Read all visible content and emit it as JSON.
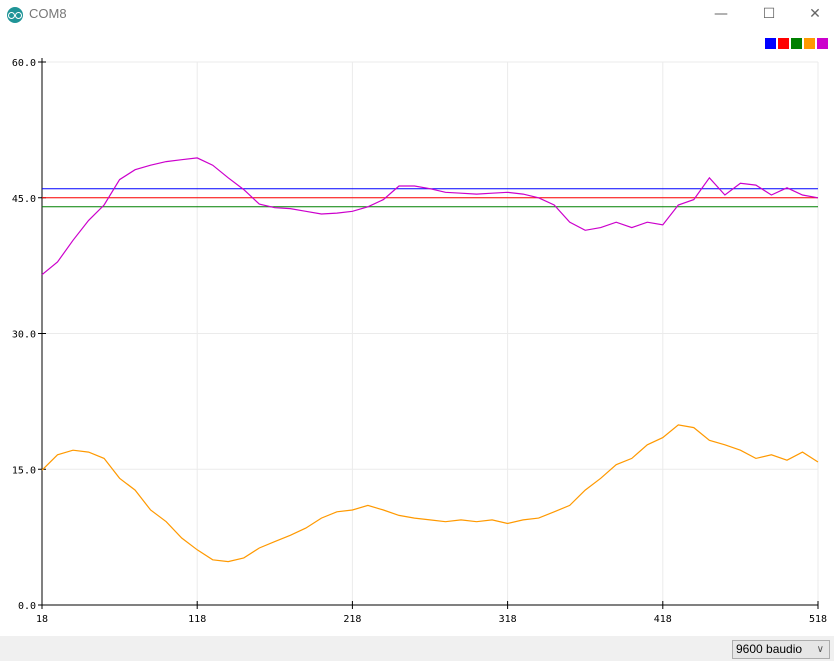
{
  "window": {
    "title": "COM8",
    "app_icon": "arduino-icon",
    "controls": [
      "minimize",
      "maximize",
      "close"
    ]
  },
  "legend": {
    "colors": [
      "#0000ff",
      "#ff0000",
      "#008000",
      "#ff9900",
      "#cc00cc"
    ]
  },
  "footer": {
    "baud_rate": "9600 baudio"
  },
  "chart_data": {
    "type": "line",
    "xlim": [
      18,
      518
    ],
    "ylim": [
      0,
      60
    ],
    "x_ticks": [
      "18",
      "118",
      "218",
      "318",
      "418",
      "518"
    ],
    "y_ticks": [
      "0.0",
      "15.0",
      "30.0",
      "45.0",
      "60.0"
    ],
    "grid": true,
    "legend": "top-right",
    "x": [
      18,
      28,
      38,
      48,
      58,
      68,
      78,
      88,
      98,
      108,
      118,
      128,
      138,
      148,
      158,
      168,
      178,
      188,
      198,
      208,
      218,
      228,
      238,
      248,
      258,
      268,
      278,
      288,
      298,
      308,
      318,
      328,
      338,
      348,
      358,
      368,
      378,
      388,
      398,
      408,
      418,
      428,
      438,
      448,
      458,
      468,
      478,
      488,
      498,
      508,
      518
    ],
    "series": [
      {
        "color": "#0000ff",
        "constant": 46
      },
      {
        "color": "#ff0000",
        "constant": 45
      },
      {
        "color": "#008000",
        "constant": 44
      },
      {
        "color": "#ff9900",
        "values": [
          14.9,
          16.6,
          17.1,
          16.9,
          16.2,
          14.0,
          12.7,
          10.5,
          9.2,
          7.4,
          6.1,
          5.0,
          4.8,
          5.2,
          6.3,
          7.0,
          7.7,
          8.5,
          9.6,
          10.3,
          10.5,
          11.0,
          10.5,
          9.9,
          9.6,
          9.4,
          9.2,
          9.4,
          9.2,
          9.4,
          9.0,
          9.4,
          9.6,
          10.3,
          11.0,
          12.7,
          14.0,
          15.5,
          16.2,
          17.7,
          18.5,
          19.9,
          19.6,
          18.2,
          17.7,
          17.1,
          16.2,
          16.6,
          16.0,
          16.9,
          15.8
        ]
      },
      {
        "color": "#cc00cc",
        "values": [
          36.5,
          37.9,
          40.3,
          42.5,
          44.2,
          47.0,
          48.1,
          48.6,
          49.0,
          49.2,
          49.4,
          48.6,
          47.2,
          45.9,
          44.3,
          43.9,
          43.8,
          43.5,
          43.2,
          43.3,
          43.5,
          44.0,
          44.8,
          46.3,
          46.3,
          46.0,
          45.6,
          45.5,
          45.4,
          45.5,
          45.6,
          45.4,
          45.0,
          44.2,
          42.3,
          41.4,
          41.7,
          42.3,
          41.7,
          42.3,
          42.0,
          44.2,
          44.8,
          47.2,
          45.3,
          46.6,
          46.4,
          45.3,
          46.1,
          45.3,
          45.0
        ]
      }
    ]
  }
}
